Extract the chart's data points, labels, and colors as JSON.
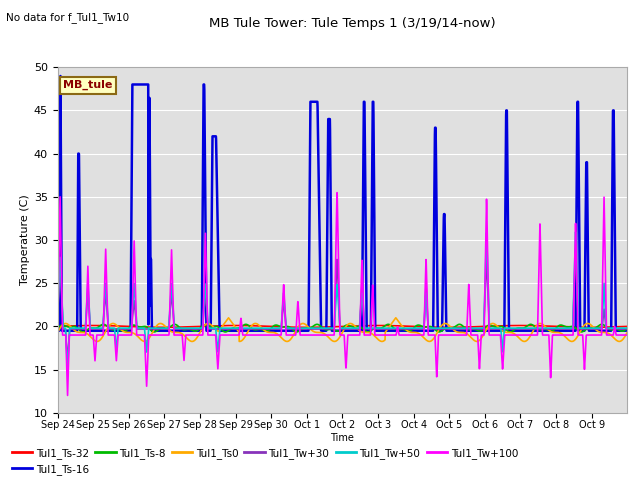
{
  "title": "MB Tule Tower: Tule Temps 1 (3/19/14-now)",
  "no_data_text": "No data for f_Tul1_Tw10",
  "xlabel": "Time",
  "ylabel": "Temperature (C)",
  "ylim": [
    10,
    50
  ],
  "yticks": [
    10,
    15,
    20,
    25,
    30,
    35,
    40,
    45,
    50
  ],
  "bg_color": "#e0e0e0",
  "legend_label": "MB_tule",
  "legend_bg": "#ffffc0",
  "legend_border": "#8b6914",
  "series_order": [
    "Tul1_Ts-32",
    "Tul1_Ts-16",
    "Tul1_Ts-8",
    "Tul1_Ts0",
    "Tul1_Tw+30",
    "Tul1_Tw+50",
    "Tul1_Tw+100"
  ],
  "series": {
    "Tul1_Ts-32": {
      "color": "#ff0000",
      "lw": 1.2
    },
    "Tul1_Ts-16": {
      "color": "#0000dd",
      "lw": 1.8
    },
    "Tul1_Ts-8": {
      "color": "#00bb00",
      "lw": 1.2
    },
    "Tul1_Ts0": {
      "color": "#ffaa00",
      "lw": 1.2
    },
    "Tul1_Tw+30": {
      "color": "#8833bb",
      "lw": 1.2
    },
    "Tul1_Tw+50": {
      "color": "#00cccc",
      "lw": 1.2
    },
    "Tul1_Tw+100": {
      "color": "#ff00ff",
      "lw": 1.2
    }
  },
  "xticklabels": [
    "Sep 24",
    "Sep 25",
    "Sep 26",
    "Sep 27",
    "Sep 28",
    "Sep 29",
    "Sep 30",
    "Oct 1",
    "Oct 2",
    "Oct 3",
    "Oct 4",
    "Oct 5",
    "Oct 6",
    "Oct 7",
    "Oct 8",
    "Oct 9"
  ],
  "num_days": 16
}
